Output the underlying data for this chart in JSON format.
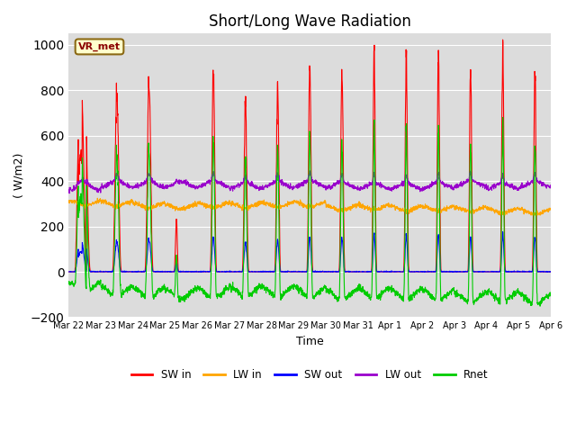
{
  "title": "Short/Long Wave Radiation",
  "ylabel": "( W/m2)",
  "xlabel": "Time",
  "station_label": "VR_met",
  "ylim": [
    -200,
    1050
  ],
  "yticks": [
    -200,
    0,
    200,
    400,
    600,
    800,
    1000
  ],
  "series_colors": {
    "SW_in": "#ff0000",
    "LW_in": "#ffa500",
    "SW_out": "#0000ff",
    "LW_out": "#9900cc",
    "Rnet": "#00cc00"
  },
  "legend_labels": [
    "SW in",
    "LW in",
    "SW out",
    "LW out",
    "Rnet"
  ],
  "xtick_labels": [
    "Mar 22",
    "Mar 23",
    "Mar 24",
    "Mar 25",
    "Mar 26",
    "Mar 27",
    "Mar 28",
    "Mar 29",
    "Mar 30",
    "Mar 31",
    "Apr 1",
    "Apr 2",
    "Apr 3",
    "Apr 4",
    "Apr 5",
    "Apr 6"
  ],
  "background_color": "#dcdcdc",
  "fig_background": "#ffffff",
  "title_fontsize": 12,
  "label_fontsize": 9,
  "tick_fontsize": 8
}
